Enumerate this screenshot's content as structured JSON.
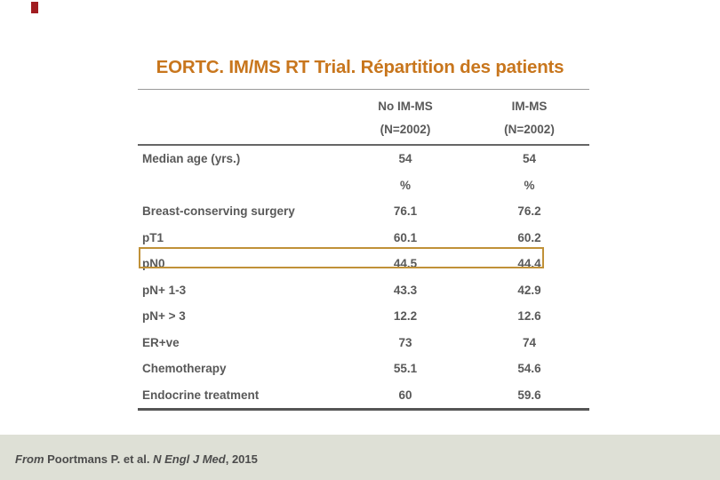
{
  "slide": {
    "title": "EORTC. IM/MS RT Trial. Répartition des patients"
  },
  "table": {
    "columns": [
      {
        "group": "No IM-MS",
        "n": "(N=2002)"
      },
      {
        "group": "IM-MS",
        "n": "(N=2002)"
      }
    ],
    "rows": [
      {
        "label": "Median age (yrs.)",
        "no_imms": "54",
        "imms": "54",
        "highlight": false
      },
      {
        "label": "",
        "no_imms": "%",
        "imms": "%",
        "highlight": false
      },
      {
        "label": "Breast-conserving surgery",
        "no_imms": "76.1",
        "imms": "76.2",
        "highlight": false
      },
      {
        "label": "pT1",
        "no_imms": "60.1",
        "imms": "60.2",
        "highlight": false
      },
      {
        "label": "pN0",
        "no_imms": "44.5",
        "imms": "44.4",
        "highlight": true
      },
      {
        "label": "pN+ 1-3",
        "no_imms": "43.3",
        "imms": "42.9",
        "highlight": false
      },
      {
        "label": "pN+ > 3",
        "no_imms": "12.2",
        "imms": "12.6",
        "highlight": false
      },
      {
        "label": "ER+ve",
        "no_imms": "73",
        "imms": "74",
        "highlight": false
      },
      {
        "label": "Chemotherapy",
        "no_imms": "55.1",
        "imms": "54.6",
        "highlight": false
      },
      {
        "label": "Endocrine treatment",
        "no_imms": "60",
        "imms": "59.6",
        "highlight": false
      }
    ]
  },
  "footer": {
    "from": "From",
    "authors": " Poortmans P. et al. ",
    "journal": "N Engl J Med",
    "year": ", 2015"
  },
  "colors": {
    "title_orange": "#c8761d",
    "highlight_border": "#c09138",
    "corner_mark_red": "#a11d21",
    "footer_background": "#dee0d6",
    "table_text": "#595959"
  }
}
